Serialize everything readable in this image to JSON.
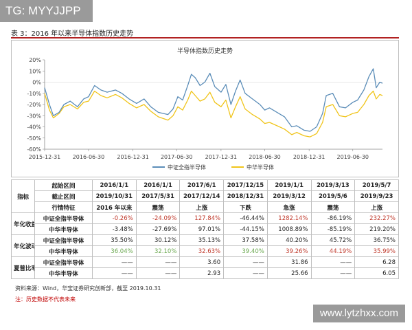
{
  "watermark_top": "TG: MYYJJPP",
  "watermark_bottom": "www.lytzhxx.com",
  "figure_title": "表 3：2016 年以来半导体指数历史走势",
  "chart_data": {
    "type": "line",
    "title": "半导体指数历史走势",
    "x_ticks": [
      "2015-12-31",
      "2016-06-30",
      "2016-12-31",
      "2017-06-30",
      "2017-12-31",
      "2018-06-30",
      "2018-12-31",
      "2019-06-30"
    ],
    "x_range": [
      "2015-12-31",
      "2019-10-31"
    ],
    "y_ticks": [
      "20%",
      "10%",
      "0%",
      "-10%",
      "-20%",
      "-30%",
      "-40%",
      "-50%",
      "-60%"
    ],
    "ylim": [
      -60,
      20
    ],
    "grid": false,
    "legend_position": "bottom",
    "series": [
      {
        "name": "中证全指半导体",
        "color": "#5b8db8",
        "points": [
          [
            "2015-12-31",
            -5
          ],
          [
            "2016-01-20",
            -20
          ],
          [
            "2016-02-05",
            -30
          ],
          [
            "2016-02-29",
            -27
          ],
          [
            "2016-03-20",
            -20
          ],
          [
            "2016-04-15",
            -17
          ],
          [
            "2016-05-15",
            -22
          ],
          [
            "2016-06-10",
            -15
          ],
          [
            "2016-06-30",
            -13
          ],
          [
            "2016-07-25",
            -3
          ],
          [
            "2016-08-20",
            -7
          ],
          [
            "2016-09-15",
            -9
          ],
          [
            "2016-10-20",
            -7
          ],
          [
            "2016-11-15",
            -10
          ],
          [
            "2016-12-15",
            -15
          ],
          [
            "2017-01-15",
            -19
          ],
          [
            "2017-02-15",
            -15
          ],
          [
            "2017-03-15",
            -22
          ],
          [
            "2017-04-15",
            -27
          ],
          [
            "2017-05-25",
            -29
          ],
          [
            "2017-06-15",
            -24
          ],
          [
            "2017-07-05",
            -13
          ],
          [
            "2017-07-25",
            -16
          ],
          [
            "2017-08-15",
            -3
          ],
          [
            "2017-08-30",
            7
          ],
          [
            "2017-09-15",
            4
          ],
          [
            "2017-10-05",
            -3
          ],
          [
            "2017-10-25",
            0
          ],
          [
            "2017-11-15",
            8
          ],
          [
            "2017-12-05",
            -4
          ],
          [
            "2017-12-31",
            -9
          ],
          [
            "2018-01-20",
            -2
          ],
          [
            "2018-02-10",
            -20
          ],
          [
            "2018-03-01",
            -8
          ],
          [
            "2018-03-20",
            2
          ],
          [
            "2018-04-10",
            -10
          ],
          [
            "2018-05-10",
            -15
          ],
          [
            "2018-06-10",
            -20
          ],
          [
            "2018-06-30",
            -25
          ],
          [
            "2018-07-20",
            -23
          ],
          [
            "2018-08-20",
            -27
          ],
          [
            "2018-09-20",
            -31
          ],
          [
            "2018-10-20",
            -40
          ],
          [
            "2018-11-10",
            -39
          ],
          [
            "2018-12-10",
            -43
          ],
          [
            "2019-01-04",
            -44
          ],
          [
            "2019-01-31",
            -40
          ],
          [
            "2019-02-25",
            -28
          ],
          [
            "2019-03-12",
            -12
          ],
          [
            "2019-04-08",
            -10
          ],
          [
            "2019-05-06",
            -22
          ],
          [
            "2019-05-31",
            -23
          ],
          [
            "2019-06-30",
            -18
          ],
          [
            "2019-07-20",
            -16
          ],
          [
            "2019-08-15",
            -7
          ],
          [
            "2019-09-05",
            5
          ],
          [
            "2019-09-23",
            12
          ],
          [
            "2019-10-05",
            -5
          ],
          [
            "2019-10-20",
            0
          ],
          [
            "2019-10-31",
            -1
          ]
        ]
      },
      {
        "name": "中华半导体",
        "color": "#f0c419",
        "points": [
          [
            "2015-12-31",
            -10
          ],
          [
            "2016-01-20",
            -25
          ],
          [
            "2016-02-05",
            -32
          ],
          [
            "2016-02-29",
            -28
          ],
          [
            "2016-03-20",
            -22
          ],
          [
            "2016-04-15",
            -20
          ],
          [
            "2016-05-15",
            -24
          ],
          [
            "2016-06-10",
            -18
          ],
          [
            "2016-06-30",
            -17
          ],
          [
            "2016-07-25",
            -8
          ],
          [
            "2016-08-20",
            -12
          ],
          [
            "2016-09-15",
            -14
          ],
          [
            "2016-10-20",
            -11
          ],
          [
            "2016-11-15",
            -14
          ],
          [
            "2016-12-15",
            -19
          ],
          [
            "2017-01-15",
            -23
          ],
          [
            "2017-02-15",
            -20
          ],
          [
            "2017-03-15",
            -26
          ],
          [
            "2017-04-15",
            -31
          ],
          [
            "2017-05-25",
            -34
          ],
          [
            "2017-06-15",
            -30
          ],
          [
            "2017-07-05",
            -22
          ],
          [
            "2017-07-25",
            -25
          ],
          [
            "2017-08-15",
            -16
          ],
          [
            "2017-08-30",
            -8
          ],
          [
            "2017-09-15",
            -12
          ],
          [
            "2017-10-05",
            -17
          ],
          [
            "2017-10-25",
            -15
          ],
          [
            "2017-11-15",
            -9
          ],
          [
            "2017-12-05",
            -18
          ],
          [
            "2017-12-31",
            -22
          ],
          [
            "2018-01-20",
            -16
          ],
          [
            "2018-02-10",
            -32
          ],
          [
            "2018-03-01",
            -22
          ],
          [
            "2018-03-20",
            -13
          ],
          [
            "2018-04-10",
            -24
          ],
          [
            "2018-05-10",
            -29
          ],
          [
            "2018-06-10",
            -33
          ],
          [
            "2018-06-30",
            -37
          ],
          [
            "2018-07-20",
            -36
          ],
          [
            "2018-08-20",
            -39
          ],
          [
            "2018-09-20",
            -42
          ],
          [
            "2018-10-20",
            -47
          ],
          [
            "2018-11-10",
            -45
          ],
          [
            "2018-12-10",
            -48
          ],
          [
            "2019-01-04",
            -49
          ],
          [
            "2019-01-31",
            -46
          ],
          [
            "2019-02-25",
            -36
          ],
          [
            "2019-03-12",
            -22
          ],
          [
            "2019-04-08",
            -20
          ],
          [
            "2019-05-06",
            -30
          ],
          [
            "2019-05-31",
            -31
          ],
          [
            "2019-06-30",
            -28
          ],
          [
            "2019-07-20",
            -27
          ],
          [
            "2019-08-15",
            -20
          ],
          [
            "2019-09-05",
            -12
          ],
          [
            "2019-09-23",
            -8
          ],
          [
            "2019-10-05",
            -15
          ],
          [
            "2019-10-20",
            -11
          ],
          [
            "2019-10-31",
            -12
          ]
        ]
      }
    ]
  },
  "table": {
    "header_rows": [
      {
        "label": "起始区间",
        "cells": [
          "2016/1/1",
          "2016/1/1",
          "2017/6/1",
          "2017/12/15",
          "2019/1/1",
          "2019/3/13",
          "2019/5/7"
        ]
      },
      {
        "label": "截止区间",
        "cells": [
          "2019/10/31",
          "2017/5/31",
          "2017/12/14",
          "2018/12/31",
          "2019/3/12",
          "2019/5/6",
          "2019/9/23"
        ]
      },
      {
        "label": "行情特征",
        "cells": [
          "2016 年以来",
          "震荡",
          "上涨",
          "下跌",
          "急涨",
          "震荡",
          "上涨"
        ]
      }
    ],
    "indicator_label": "指标",
    "groups": [
      {
        "label": "年化收益",
        "rows": [
          {
            "label": "中证全指半导体",
            "cells": [
              {
                "v": "-0.26%",
                "c": "red"
              },
              {
                "v": "-24.09%",
                "c": "red"
              },
              {
                "v": "127.84%",
                "c": "red"
              },
              {
                "v": "-46.44%",
                "c": ""
              },
              {
                "v": "1282.14%",
                "c": "red"
              },
              {
                "v": "-86.19%",
                "c": ""
              },
              {
                "v": "232.27%",
                "c": "red"
              }
            ]
          },
          {
            "label": "中华半导体",
            "cells": [
              {
                "v": "-3.48%",
                "c": ""
              },
              {
                "v": "-27.69%",
                "c": ""
              },
              {
                "v": "97.01%",
                "c": ""
              },
              {
                "v": "-44.15%",
                "c": ""
              },
              {
                "v": "1008.89%",
                "c": ""
              },
              {
                "v": "-85.19%",
                "c": ""
              },
              {
                "v": "219.20%",
                "c": ""
              }
            ]
          }
        ]
      },
      {
        "label": "年化波动",
        "rows": [
          {
            "label": "中证全指半导体",
            "cells": [
              {
                "v": "35.50%",
                "c": ""
              },
              {
                "v": "30.12%",
                "c": ""
              },
              {
                "v": "35.13%",
                "c": ""
              },
              {
                "v": "37.58%",
                "c": ""
              },
              {
                "v": "40.20%",
                "c": ""
              },
              {
                "v": "45.72%",
                "c": ""
              },
              {
                "v": "36.75%",
                "c": ""
              }
            ]
          },
          {
            "label": "中华半导体",
            "cells": [
              {
                "v": "36.04%",
                "c": "green"
              },
              {
                "v": "32.10%",
                "c": "green"
              },
              {
                "v": "32.63%",
                "c": "red"
              },
              {
                "v": "39.40%",
                "c": "green"
              },
              {
                "v": "39.26%",
                "c": "red"
              },
              {
                "v": "44.19%",
                "c": "red"
              },
              {
                "v": "35.99%",
                "c": "red"
              }
            ]
          }
        ]
      },
      {
        "label": "夏普比率",
        "rows": [
          {
            "label": "中证全指半导体",
            "cells": [
              {
                "v": "——",
                "c": ""
              },
              {
                "v": "——",
                "c": ""
              },
              {
                "v": "3.60",
                "c": ""
              },
              {
                "v": "——",
                "c": ""
              },
              {
                "v": "31.86",
                "c": ""
              },
              {
                "v": "——",
                "c": ""
              },
              {
                "v": "6.28",
                "c": ""
              }
            ]
          },
          {
            "label": "中华半导体",
            "cells": [
              {
                "v": "——",
                "c": ""
              },
              {
                "v": "——",
                "c": ""
              },
              {
                "v": "2.93",
                "c": ""
              },
              {
                "v": "——",
                "c": ""
              },
              {
                "v": "25.66",
                "c": ""
              },
              {
                "v": "——",
                "c": ""
              },
              {
                "v": "6.05",
                "c": ""
              }
            ]
          }
        ]
      }
    ]
  },
  "source": "资料来源：Wind，华宝证券研究创新部，截至 2019.10.31",
  "note": "注：历史数据不代表未来"
}
